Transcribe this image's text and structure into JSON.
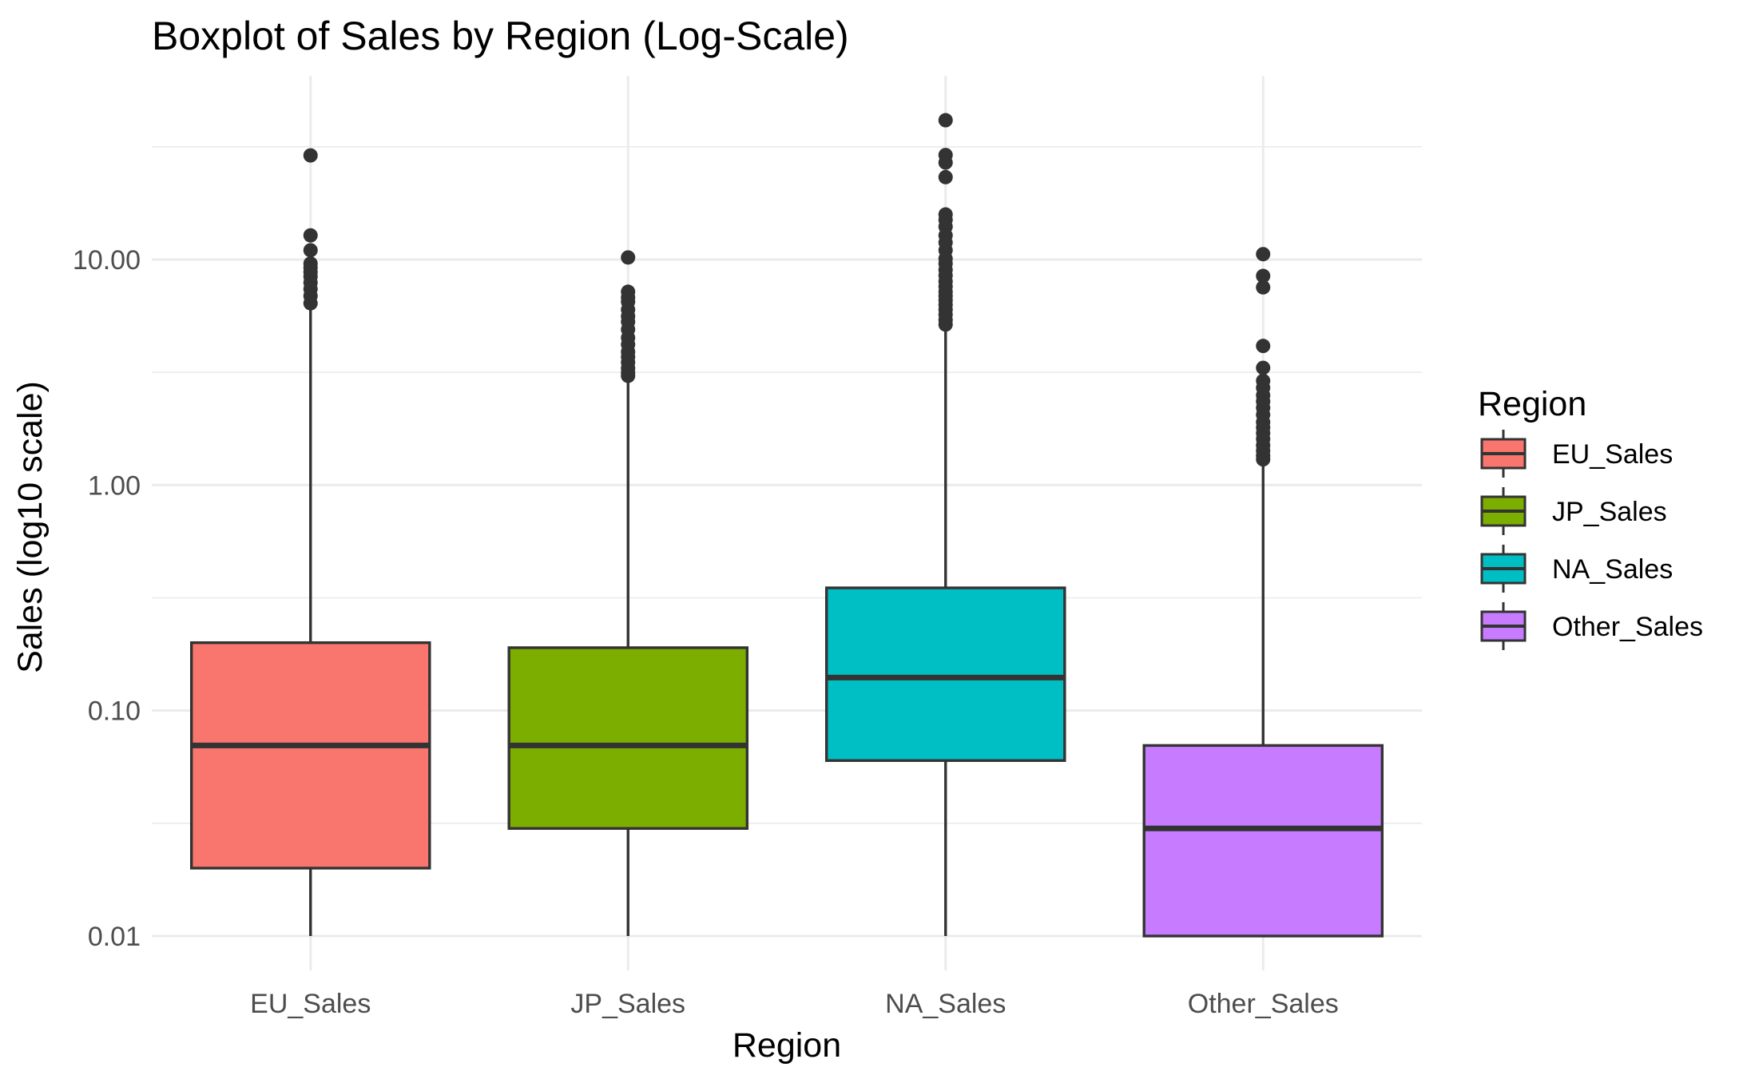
{
  "chart_data": {
    "type": "boxplot",
    "title": "Boxplot of Sales by Region (Log-Scale)",
    "xlabel": "Region",
    "ylabel": "Sales (log10 scale)",
    "yscale": "log10",
    "ylim": [
      0.006,
      60
    ],
    "yticks": [
      0.01,
      0.1,
      1,
      10
    ],
    "ytick_labels": [
      "0.01",
      "0.10",
      "1.00",
      "10.00"
    ],
    "grid": true,
    "legend": {
      "title": "Region",
      "placement": "right"
    },
    "categories": [
      "EU_Sales",
      "JP_Sales",
      "NA_Sales",
      "Other_Sales"
    ],
    "series": [
      {
        "name": "EU_Sales",
        "color": "#F8766D",
        "q1": 0.02,
        "median": 0.07,
        "q3": 0.2,
        "whisker_low": 0.01,
        "whisker_high": 6.2,
        "outliers": [
          28.96,
          12.8,
          11.0,
          9.6,
          9.2,
          8.8,
          8.4,
          7.9,
          7.4,
          6.9,
          6.4
        ]
      },
      {
        "name": "JP_Sales",
        "color": "#7CAE00",
        "q1": 0.03,
        "median": 0.07,
        "q3": 0.19,
        "whisker_low": 0.01,
        "whisker_high": 2.9,
        "outliers": [
          10.22,
          7.2,
          6.8,
          6.5,
          6.0,
          5.6,
          5.3,
          4.9,
          4.5,
          4.2,
          3.9,
          3.7,
          3.5,
          3.3,
          3.15,
          3.05
        ]
      },
      {
        "name": "NA_Sales",
        "color": "#00BFC4",
        "q1": 0.06,
        "median": 0.14,
        "q3": 0.35,
        "whisker_low": 0.01,
        "whisker_high": 4.9,
        "outliers": [
          41.49,
          29.08,
          26.93,
          23.2,
          15.85,
          15.0,
          14.0,
          12.8,
          11.9,
          11.0,
          10.1,
          9.6,
          9.0,
          8.5,
          8.0,
          7.6,
          7.2,
          6.9,
          6.6,
          6.3,
          6.0,
          5.7,
          5.4,
          5.15
        ]
      },
      {
        "name": "Other_Sales",
        "color": "#C77CFF",
        "q1": 0.01,
        "median": 0.03,
        "q3": 0.07,
        "whisker_low": 0.01,
        "whisker_high": 1.25,
        "outliers": [
          10.57,
          8.46,
          7.53,
          4.14,
          3.31,
          2.9,
          2.7,
          2.5,
          2.35,
          2.2,
          2.05,
          1.9,
          1.8,
          1.7,
          1.6,
          1.5,
          1.42,
          1.35,
          1.3
        ]
      }
    ]
  }
}
